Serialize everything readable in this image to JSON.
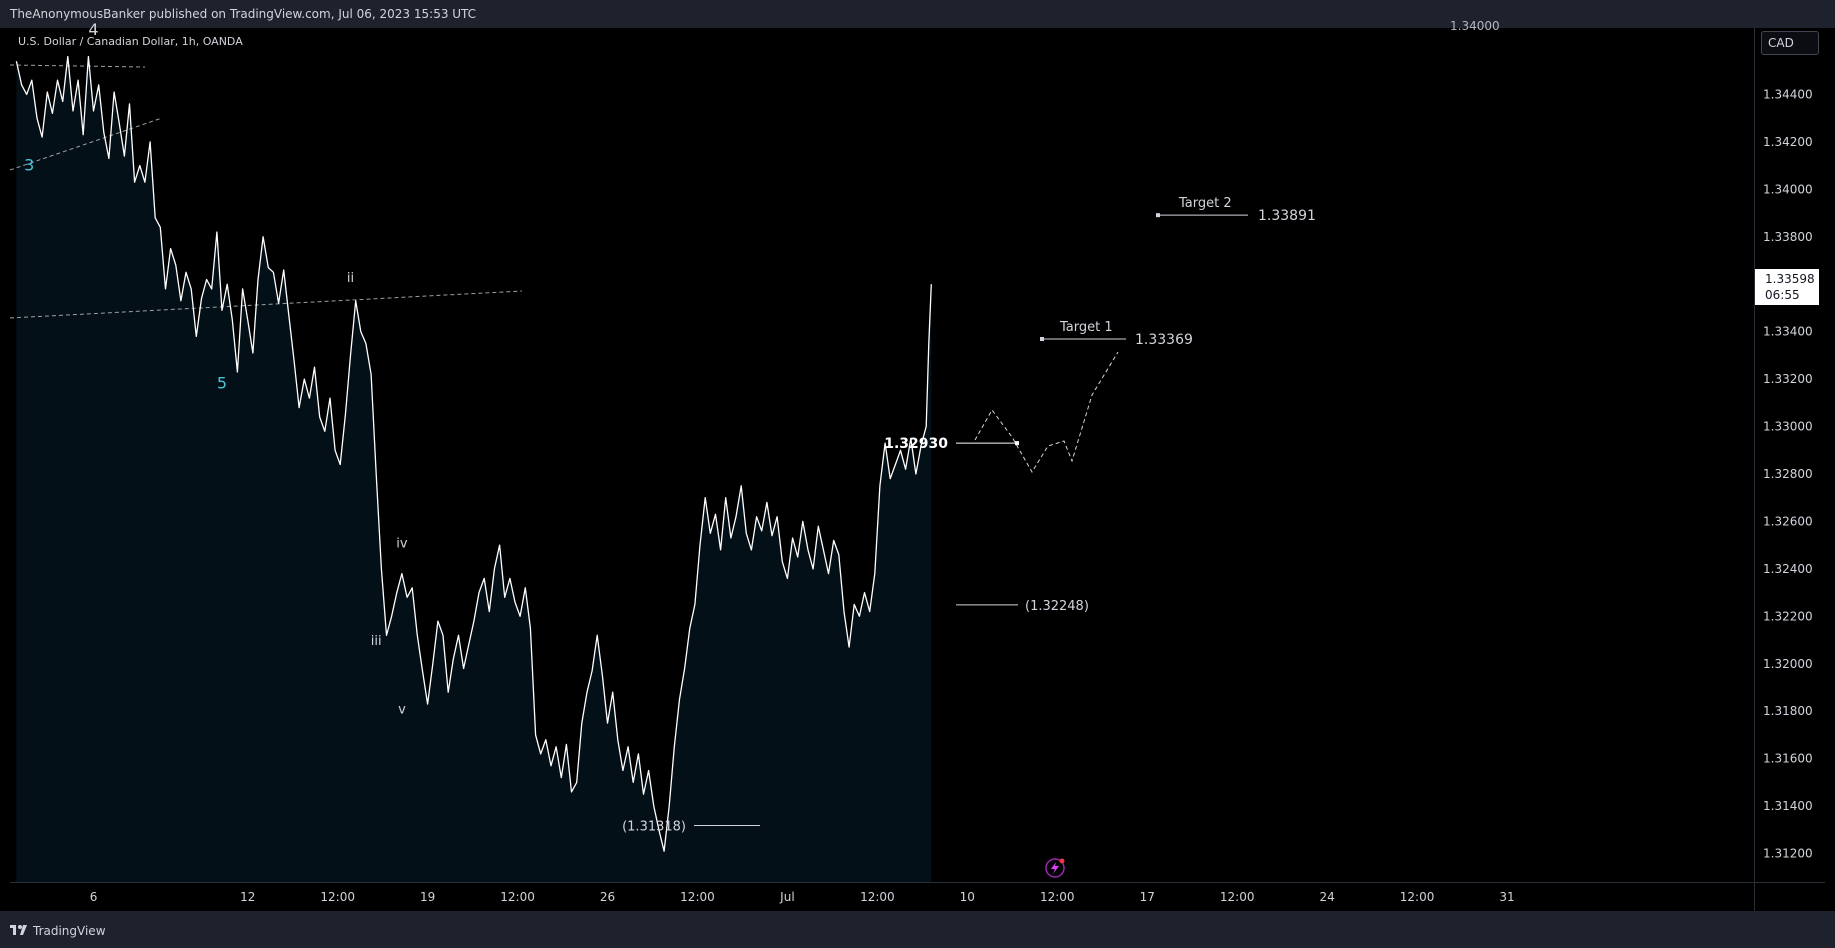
{
  "header": {
    "publisher_line": "TheAnonymousBanker published on TradingView.com, Jul 06, 2023 15:53 UTC"
  },
  "symbol_line": "U.S. Dollar / Canadian Dollar, 1h, OANDA",
  "currency": "CAD",
  "cut_off_label": "1.34000",
  "last_price": {
    "value": "1.33598",
    "countdown": "06:55"
  },
  "footer": {
    "brand": "TradingView"
  },
  "colors": {
    "line": "#ffffff",
    "fill_top": "#12a7a8",
    "fill_bottom": "#041018",
    "text": "#d1d4dc",
    "badge_bg": "#ffffff"
  },
  "icons": {
    "logo": "tradingview-logo-icon",
    "event": "lightning-event-icon"
  },
  "chart_data": {
    "type": "area",
    "title": "U.S. Dollar / Canadian Dollar, 1h, OANDA",
    "xlabel": "",
    "ylabel": "",
    "ylim": [
      1.3108,
      1.3468
    ],
    "x_ticks": [
      {
        "label": "6",
        "day": 3.25
      },
      {
        "label": "12",
        "day": 9.25
      },
      {
        "label": "12:00",
        "day": 12.75
      },
      {
        "label": "19",
        "day": 16.25
      },
      {
        "label": "12:00",
        "day": 19.75
      },
      {
        "label": "26",
        "day": 23.25
      },
      {
        "label": "12:00",
        "day": 26.75
      },
      {
        "label": "Jul",
        "day": 30.25
      },
      {
        "label": "12:00",
        "day": 33.75
      },
      {
        "label": "10",
        "day": 37.25
      },
      {
        "label": "12:00",
        "day": 40.75
      },
      {
        "label": "17",
        "day": 44.25
      },
      {
        "label": "12:00",
        "day": 47.75
      },
      {
        "label": "24",
        "day": 51.25
      },
      {
        "label": "12:00",
        "day": 54.75
      },
      {
        "label": "31",
        "day": 58.25
      }
    ],
    "y_ticks": [
      "1.34400",
      "1.34200",
      "1.34000",
      "1.33800",
      "1.33400",
      "1.33200",
      "1.33000",
      "1.32800",
      "1.32600",
      "1.32400",
      "1.32200",
      "1.32000",
      "1.31800",
      "1.31600",
      "1.31400",
      "1.31200"
    ],
    "series": [
      {
        "points": [
          [
            0.25,
            1.3454
          ],
          [
            0.45,
            1.3444
          ],
          [
            0.65,
            1.344
          ],
          [
            0.85,
            1.3446
          ],
          [
            1.05,
            1.343
          ],
          [
            1.25,
            1.3422
          ],
          [
            1.45,
            1.3441
          ],
          [
            1.65,
            1.3432
          ],
          [
            1.85,
            1.3446
          ],
          [
            2.05,
            1.3437
          ],
          [
            2.25,
            1.3456
          ],
          [
            2.45,
            1.3433
          ],
          [
            2.65,
            1.3446
          ],
          [
            2.85,
            1.3423
          ],
          [
            3.05,
            1.3456
          ],
          [
            3.25,
            1.3433
          ],
          [
            3.45,
            1.3444
          ],
          [
            3.65,
            1.3424
          ],
          [
            3.85,
            1.3413
          ],
          [
            4.05,
            1.3441
          ],
          [
            4.25,
            1.3428
          ],
          [
            4.45,
            1.3414
          ],
          [
            4.65,
            1.3436
          ],
          [
            4.85,
            1.3403
          ],
          [
            5.05,
            1.341
          ],
          [
            5.25,
            1.3403
          ],
          [
            5.45,
            1.342
          ],
          [
            5.65,
            1.3388
          ],
          [
            5.85,
            1.3384
          ],
          [
            6.05,
            1.3358
          ],
          [
            6.25,
            1.3375
          ],
          [
            6.45,
            1.3368
          ],
          [
            6.65,
            1.3353
          ],
          [
            6.85,
            1.3365
          ],
          [
            7.05,
            1.3358
          ],
          [
            7.25,
            1.3338
          ],
          [
            7.45,
            1.3354
          ],
          [
            7.65,
            1.3362
          ],
          [
            7.85,
            1.3358
          ],
          [
            8.05,
            1.3382
          ],
          [
            8.25,
            1.3349
          ],
          [
            8.45,
            1.336
          ],
          [
            8.65,
            1.3345
          ],
          [
            8.85,
            1.3323
          ],
          [
            9.05,
            1.3358
          ],
          [
            9.25,
            1.3345
          ],
          [
            9.45,
            1.3331
          ],
          [
            9.65,
            1.3362
          ],
          [
            9.85,
            1.338
          ],
          [
            10.05,
            1.3367
          ],
          [
            10.25,
            1.3365
          ],
          [
            10.45,
            1.3352
          ],
          [
            10.65,
            1.3366
          ],
          [
            10.85,
            1.3347
          ],
          [
            11.05,
            1.3328
          ],
          [
            11.25,
            1.3308
          ],
          [
            11.45,
            1.332
          ],
          [
            11.65,
            1.3312
          ],
          [
            11.85,
            1.3325
          ],
          [
            12.05,
            1.3304
          ],
          [
            12.25,
            1.3298
          ],
          [
            12.45,
            1.3312
          ],
          [
            12.65,
            1.329
          ],
          [
            12.85,
            1.3284
          ],
          [
            13.05,
            1.3305
          ],
          [
            13.25,
            1.333
          ],
          [
            13.45,
            1.3353
          ],
          [
            13.65,
            1.334
          ],
          [
            13.85,
            1.3335
          ],
          [
            14.05,
            1.3322
          ],
          [
            14.25,
            1.328
          ],
          [
            14.45,
            1.324
          ],
          [
            14.65,
            1.3212
          ],
          [
            14.85,
            1.322
          ],
          [
            15.05,
            1.323
          ],
          [
            15.25,
            1.3238
          ],
          [
            15.45,
            1.3228
          ],
          [
            15.65,
            1.3232
          ],
          [
            15.85,
            1.3212
          ],
          [
            16.05,
            1.3197
          ],
          [
            16.25,
            1.3183
          ],
          [
            16.45,
            1.32
          ],
          [
            16.65,
            1.3218
          ],
          [
            16.85,
            1.3212
          ],
          [
            17.05,
            1.3188
          ],
          [
            17.25,
            1.3202
          ],
          [
            17.45,
            1.3212
          ],
          [
            17.65,
            1.3198
          ],
          [
            17.85,
            1.3208
          ],
          [
            18.05,
            1.3218
          ],
          [
            18.25,
            1.323
          ],
          [
            18.45,
            1.3236
          ],
          [
            18.65,
            1.3222
          ],
          [
            18.85,
            1.324
          ],
          [
            19.05,
            1.325
          ],
          [
            19.25,
            1.3228
          ],
          [
            19.45,
            1.3236
          ],
          [
            19.65,
            1.3226
          ],
          [
            19.85,
            1.322
          ],
          [
            20.05,
            1.3232
          ],
          [
            20.25,
            1.3215
          ],
          [
            20.45,
            1.317
          ],
          [
            20.65,
            1.3162
          ],
          [
            20.85,
            1.3168
          ],
          [
            21.05,
            1.3157
          ],
          [
            21.25,
            1.3165
          ],
          [
            21.45,
            1.3152
          ],
          [
            21.65,
            1.3166
          ],
          [
            21.85,
            1.3146
          ],
          [
            22.05,
            1.315
          ],
          [
            22.25,
            1.3175
          ],
          [
            22.45,
            1.3188
          ],
          [
            22.65,
            1.3197
          ],
          [
            22.85,
            1.3212
          ],
          [
            23.05,
            1.3195
          ],
          [
            23.25,
            1.3175
          ],
          [
            23.45,
            1.3188
          ],
          [
            23.65,
            1.3168
          ],
          [
            23.85,
            1.3155
          ],
          [
            24.05,
            1.3165
          ],
          [
            24.25,
            1.315
          ],
          [
            24.45,
            1.3162
          ],
          [
            24.65,
            1.3145
          ],
          [
            24.85,
            1.3155
          ],
          [
            25.05,
            1.314
          ],
          [
            25.25,
            1.313
          ],
          [
            25.45,
            1.3121
          ],
          [
            25.65,
            1.314
          ],
          [
            25.85,
            1.3165
          ],
          [
            26.05,
            1.3185
          ],
          [
            26.25,
            1.3198
          ],
          [
            26.45,
            1.3215
          ],
          [
            26.65,
            1.3225
          ],
          [
            26.85,
            1.325
          ],
          [
            27.05,
            1.327
          ],
          [
            27.25,
            1.3255
          ],
          [
            27.45,
            1.3263
          ],
          [
            27.65,
            1.3248
          ],
          [
            27.85,
            1.327
          ],
          [
            28.05,
            1.3253
          ],
          [
            28.25,
            1.3262
          ],
          [
            28.45,
            1.3275
          ],
          [
            28.65,
            1.3255
          ],
          [
            28.85,
            1.3248
          ],
          [
            29.05,
            1.3262
          ],
          [
            29.25,
            1.3256
          ],
          [
            29.45,
            1.3268
          ],
          [
            29.65,
            1.3254
          ],
          [
            29.85,
            1.3262
          ],
          [
            30.05,
            1.3243
          ],
          [
            30.25,
            1.3236
          ],
          [
            30.45,
            1.3253
          ],
          [
            30.65,
            1.3245
          ],
          [
            30.85,
            1.326
          ],
          [
            31.05,
            1.3248
          ],
          [
            31.25,
            1.324
          ],
          [
            31.45,
            1.3258
          ],
          [
            31.65,
            1.3248
          ],
          [
            31.85,
            1.3238
          ],
          [
            32.05,
            1.3252
          ],
          [
            32.25,
            1.3246
          ],
          [
            32.45,
            1.3222
          ],
          [
            32.65,
            1.3207
          ],
          [
            32.85,
            1.3225
          ],
          [
            33.05,
            1.322
          ],
          [
            33.25,
            1.323
          ],
          [
            33.45,
            1.3222
          ],
          [
            33.65,
            1.3238
          ],
          [
            33.85,
            1.3275
          ],
          [
            34.05,
            1.3293
          ],
          [
            34.25,
            1.3278
          ],
          [
            34.45,
            1.3284
          ],
          [
            34.65,
            1.329
          ],
          [
            34.85,
            1.3282
          ],
          [
            35.05,
            1.3295
          ],
          [
            35.25,
            1.328
          ],
          [
            35.45,
            1.3292
          ],
          [
            35.65,
            1.33
          ],
          [
            35.75,
            1.3335
          ],
          [
            35.85,
            1.336
          ]
        ]
      }
    ],
    "wave_labels": [
      {
        "text": "4",
        "day": 3.25,
        "price": 1.3465
      },
      {
        "text": "3",
        "day": 0.75,
        "price": 1.3408
      },
      {
        "text": "5",
        "day": 8.25,
        "price": 1.3316
      },
      {
        "text": "ii",
        "day": 13.25,
        "price": 1.3361
      },
      {
        "text": "iv",
        "day": 15.25,
        "price": 1.3249
      },
      {
        "text": "iii",
        "day": 14.25,
        "price": 1.3208
      },
      {
        "text": "v",
        "day": 15.25,
        "price": 1.3179
      }
    ],
    "annotations": [
      {
        "text": "Target 2",
        "value": "1.33891",
        "level": 1.33891
      },
      {
        "text": "Target 1",
        "value": "1.33369",
        "level": 1.33369
      },
      {
        "text": "",
        "value": "1.32930",
        "level": 1.3293
      },
      {
        "text": "",
        "value": "(1.32248)",
        "level": 1.32248
      },
      {
        "text": "",
        "value": "(1.31318)",
        "level": 1.31318
      }
    ]
  }
}
